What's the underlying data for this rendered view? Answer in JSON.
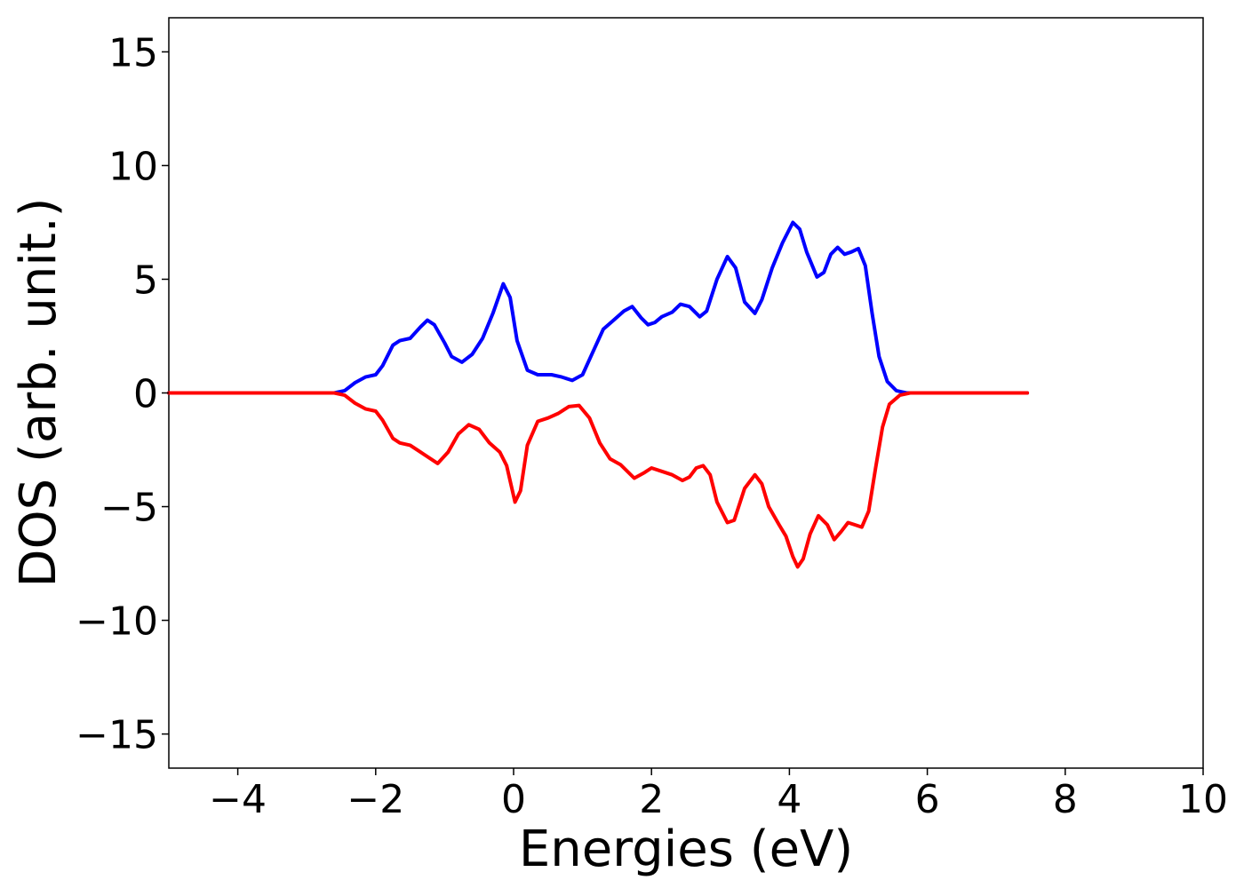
{
  "chart_data": {
    "type": "line",
    "title": "",
    "xlabel": "Energies (eV)",
    "ylabel": "DOS (arb. unit.)",
    "xlim": [
      -5,
      10
    ],
    "ylim": [
      -16.5,
      16.5
    ],
    "xticks": [
      -4,
      -2,
      0,
      2,
      4,
      6,
      8,
      10
    ],
    "xtick_labels": [
      "−4",
      "−2",
      "0",
      "2",
      "4",
      "6",
      "8",
      "10"
    ],
    "yticks": [
      -15,
      -10,
      -5,
      0,
      5,
      10,
      15
    ],
    "ytick_labels": [
      "−15",
      "−10",
      "−5",
      "0",
      "5",
      "10",
      "15"
    ],
    "grid": false,
    "legend": "none",
    "series": [
      {
        "color": "#0000ff",
        "points": [
          [
            -5.0,
            0
          ],
          [
            -3.0,
            0
          ],
          [
            -2.6,
            0
          ],
          [
            -2.45,
            0.1
          ],
          [
            -2.3,
            0.45
          ],
          [
            -2.15,
            0.7
          ],
          [
            -2.0,
            0.8
          ],
          [
            -1.9,
            1.2
          ],
          [
            -1.75,
            2.1
          ],
          [
            -1.65,
            2.3
          ],
          [
            -1.5,
            2.4
          ],
          [
            -1.35,
            2.9
          ],
          [
            -1.25,
            3.2
          ],
          [
            -1.15,
            3.0
          ],
          [
            -1.0,
            2.2
          ],
          [
            -0.9,
            1.6
          ],
          [
            -0.75,
            1.35
          ],
          [
            -0.6,
            1.7
          ],
          [
            -0.45,
            2.4
          ],
          [
            -0.3,
            3.5
          ],
          [
            -0.15,
            4.8
          ],
          [
            -0.05,
            4.2
          ],
          [
            0.05,
            2.3
          ],
          [
            0.2,
            1.0
          ],
          [
            0.35,
            0.8
          ],
          [
            0.55,
            0.8
          ],
          [
            0.7,
            0.7
          ],
          [
            0.85,
            0.55
          ],
          [
            1.0,
            0.8
          ],
          [
            1.15,
            1.8
          ],
          [
            1.3,
            2.8
          ],
          [
            1.45,
            3.2
          ],
          [
            1.6,
            3.6
          ],
          [
            1.72,
            3.8
          ],
          [
            1.85,
            3.3
          ],
          [
            1.95,
            3.0
          ],
          [
            2.05,
            3.1
          ],
          [
            2.15,
            3.35
          ],
          [
            2.3,
            3.55
          ],
          [
            2.42,
            3.9
          ],
          [
            2.55,
            3.8
          ],
          [
            2.7,
            3.35
          ],
          [
            2.8,
            3.6
          ],
          [
            2.95,
            5.0
          ],
          [
            3.1,
            6.0
          ],
          [
            3.22,
            5.5
          ],
          [
            3.35,
            4.0
          ],
          [
            3.5,
            3.5
          ],
          [
            3.6,
            4.1
          ],
          [
            3.75,
            5.5
          ],
          [
            3.9,
            6.6
          ],
          [
            4.05,
            7.5
          ],
          [
            4.15,
            7.2
          ],
          [
            4.25,
            6.2
          ],
          [
            4.4,
            5.1
          ],
          [
            4.5,
            5.3
          ],
          [
            4.6,
            6.1
          ],
          [
            4.7,
            6.4
          ],
          [
            4.8,
            6.1
          ],
          [
            4.9,
            6.2
          ],
          [
            5.0,
            6.35
          ],
          [
            5.1,
            5.6
          ],
          [
            5.2,
            3.5
          ],
          [
            5.3,
            1.6
          ],
          [
            5.42,
            0.5
          ],
          [
            5.55,
            0.1
          ],
          [
            5.7,
            0
          ],
          [
            6.0,
            0
          ],
          [
            7.45,
            0
          ]
        ]
      },
      {
        "color": "#ff0000",
        "points": [
          [
            -5.0,
            0
          ],
          [
            -3.0,
            0
          ],
          [
            -2.6,
            0
          ],
          [
            -2.45,
            -0.1
          ],
          [
            -2.3,
            -0.45
          ],
          [
            -2.15,
            -0.7
          ],
          [
            -2.0,
            -0.8
          ],
          [
            -1.9,
            -1.2
          ],
          [
            -1.75,
            -2.0
          ],
          [
            -1.65,
            -2.2
          ],
          [
            -1.5,
            -2.3
          ],
          [
            -1.35,
            -2.6
          ],
          [
            -1.1,
            -3.1
          ],
          [
            -0.95,
            -2.6
          ],
          [
            -0.8,
            -1.8
          ],
          [
            -0.65,
            -1.4
          ],
          [
            -0.5,
            -1.6
          ],
          [
            -0.35,
            -2.2
          ],
          [
            -0.2,
            -2.6
          ],
          [
            -0.1,
            -3.2
          ],
          [
            0.02,
            -4.8
          ],
          [
            0.1,
            -4.3
          ],
          [
            0.2,
            -2.3
          ],
          [
            0.35,
            -1.25
          ],
          [
            0.5,
            -1.1
          ],
          [
            0.65,
            -0.9
          ],
          [
            0.8,
            -0.6
          ],
          [
            0.95,
            -0.55
          ],
          [
            1.1,
            -1.1
          ],
          [
            1.25,
            -2.2
          ],
          [
            1.4,
            -2.9
          ],
          [
            1.55,
            -3.15
          ],
          [
            1.75,
            -3.75
          ],
          [
            1.9,
            -3.5
          ],
          [
            2.0,
            -3.3
          ],
          [
            2.15,
            -3.45
          ],
          [
            2.3,
            -3.6
          ],
          [
            2.45,
            -3.85
          ],
          [
            2.55,
            -3.7
          ],
          [
            2.65,
            -3.3
          ],
          [
            2.75,
            -3.2
          ],
          [
            2.85,
            -3.6
          ],
          [
            2.95,
            -4.8
          ],
          [
            3.1,
            -5.7
          ],
          [
            3.2,
            -5.6
          ],
          [
            3.35,
            -4.2
          ],
          [
            3.5,
            -3.6
          ],
          [
            3.6,
            -4.0
          ],
          [
            3.7,
            -5.0
          ],
          [
            3.85,
            -5.8
          ],
          [
            3.95,
            -6.3
          ],
          [
            4.05,
            -7.2
          ],
          [
            4.12,
            -7.65
          ],
          [
            4.2,
            -7.3
          ],
          [
            4.3,
            -6.2
          ],
          [
            4.42,
            -5.4
          ],
          [
            4.55,
            -5.8
          ],
          [
            4.65,
            -6.45
          ],
          [
            4.75,
            -6.1
          ],
          [
            4.85,
            -5.7
          ],
          [
            4.95,
            -5.8
          ],
          [
            5.05,
            -5.9
          ],
          [
            5.15,
            -5.2
          ],
          [
            5.25,
            -3.3
          ],
          [
            5.35,
            -1.5
          ],
          [
            5.45,
            -0.5
          ],
          [
            5.6,
            -0.1
          ],
          [
            5.75,
            0
          ],
          [
            6.0,
            0
          ],
          [
            7.45,
            0
          ]
        ]
      }
    ]
  }
}
